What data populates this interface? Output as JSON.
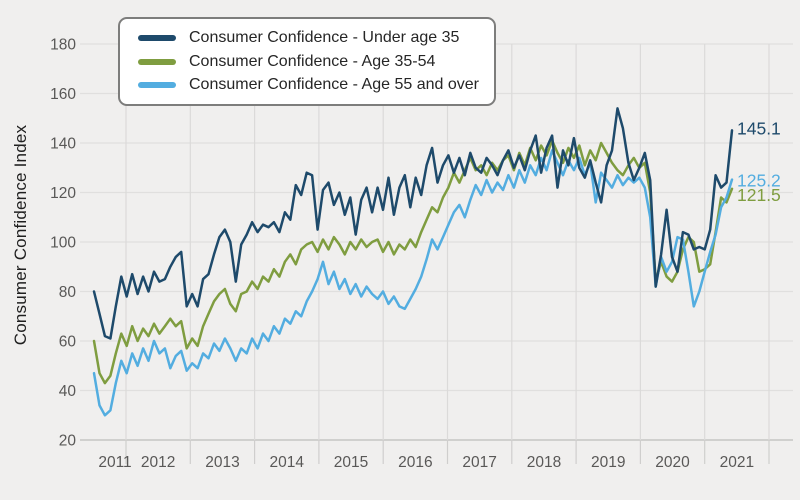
{
  "figure": {
    "background": "#f0efee",
    "gridline_color": "#e0dfde",
    "baseline_color": "#c6c5c4",
    "tick_text_color": "#595857"
  },
  "y_axis": {
    "title": "Consumer Confidence Index",
    "range": [
      20,
      180
    ],
    "ticks": [
      20,
      40,
      60,
      80,
      100,
      120,
      140,
      160,
      180
    ]
  },
  "x_axis": {
    "tick_labels": [
      "2011",
      "2012",
      "2013",
      "2014",
      "2015",
      "2016",
      "2017",
      "2018",
      "2019",
      "2020",
      "2021"
    ]
  },
  "legend": {
    "position": "top-left",
    "border_color": "#7d7d7c"
  },
  "end_labels": [
    {
      "text": "145.1",
      "color": "#1e4a6b"
    },
    {
      "text": "125.2",
      "color": "#53ade0"
    },
    {
      "text": "121.5",
      "color": "#7f9d40"
    }
  ],
  "chart_data": {
    "type": "line",
    "x_unit": "monthly, 2011 through 2021",
    "grid": true,
    "legend_position": "top-left",
    "title": "",
    "xlabel": "",
    "ylabel": "Consumer Confidence Index",
    "ylim": [
      20,
      180
    ],
    "x_tick_labels": [
      "2011",
      "2012",
      "2013",
      "2014",
      "2015",
      "2016",
      "2017",
      "2018",
      "2019",
      "2020",
      "2021"
    ],
    "series": [
      {
        "name": "Consumer Confidence - Under age 35",
        "color": "#1e4a6b",
        "end_value": 145.1,
        "values": [
          80,
          71,
          62,
          61,
          74,
          86,
          78,
          87,
          79,
          86,
          80,
          88,
          84,
          85,
          90,
          94,
          96,
          74,
          79,
          74,
          85,
          87,
          95,
          102,
          105,
          100,
          84,
          99,
          103,
          108,
          104,
          107,
          106,
          108,
          104,
          112,
          109,
          123,
          119,
          128,
          127,
          105,
          121,
          124,
          115,
          120,
          111,
          118,
          103,
          117,
          122,
          112,
          122,
          113,
          126,
          111,
          122,
          127,
          114,
          126,
          119,
          131,
          138,
          124,
          131,
          135,
          128,
          134,
          127,
          136,
          130,
          128,
          134,
          131,
          127,
          133,
          137,
          130,
          135,
          129,
          137,
          143,
          128,
          138,
          143,
          122,
          137,
          131,
          142,
          130,
          126,
          133,
          124,
          116,
          131,
          137,
          154,
          146,
          132,
          125,
          130,
          136,
          125,
          82,
          95,
          113,
          94,
          88,
          104,
          103,
          97,
          98,
          97,
          105,
          127,
          122,
          124,
          145.1
        ]
      },
      {
        "name": "Consumer Confidence - Age 35-54",
        "color": "#7f9d40",
        "end_value": 121.5,
        "values": [
          60,
          47,
          43,
          46,
          55,
          63,
          58,
          66,
          60,
          65,
          62,
          67,
          63,
          66,
          69,
          66,
          68,
          57,
          61,
          58,
          66,
          71,
          76,
          79,
          81,
          75,
          72,
          79,
          80,
          84,
          81,
          86,
          84,
          89,
          86,
          92,
          95,
          91,
          97,
          99,
          100,
          96,
          101,
          97,
          102,
          99,
          95,
          100,
          97,
          101,
          98,
          100,
          101,
          96,
          100,
          95,
          99,
          97,
          101,
          98,
          104,
          109,
          114,
          112,
          118,
          122,
          128,
          124,
          129,
          134,
          129,
          131,
          127,
          132,
          129,
          133,
          135,
          129,
          136,
          131,
          138,
          133,
          139,
          135,
          141,
          136,
          132,
          138,
          134,
          139,
          131,
          137,
          133,
          140,
          136,
          132,
          129,
          127,
          131,
          134,
          130,
          132,
          120,
          84,
          92,
          86,
          84,
          88,
          97,
          102,
          100,
          88,
          89,
          91,
          104,
          118,
          116,
          121.5
        ]
      },
      {
        "name": "Consumer Confidence - Age 55 and over",
        "color": "#53ade0",
        "end_value": 125.2,
        "values": [
          47,
          34,
          30,
          32,
          43,
          52,
          47,
          55,
          50,
          57,
          52,
          60,
          55,
          57,
          49,
          54,
          56,
          48,
          51,
          49,
          55,
          53,
          59,
          56,
          61,
          57,
          52,
          57,
          55,
          61,
          57,
          63,
          60,
          66,
          63,
          69,
          67,
          72,
          70,
          76,
          80,
          85,
          92,
          83,
          88,
          81,
          85,
          79,
          83,
          78,
          82,
          79,
          77,
          80,
          75,
          78,
          74,
          73,
          77,
          81,
          86,
          93,
          101,
          97,
          102,
          107,
          112,
          115,
          110,
          117,
          123,
          119,
          125,
          120,
          124,
          121,
          127,
          122,
          129,
          124,
          131,
          127,
          134,
          129,
          137,
          132,
          127,
          133,
          129,
          134,
          127,
          132,
          116,
          128,
          125,
          122,
          127,
          123,
          126,
          124,
          126,
          122,
          110,
          82,
          94,
          88,
          92,
          102,
          101,
          88,
          74,
          80,
          88,
          96,
          103,
          114,
          118,
          125.2
        ]
      }
    ]
  }
}
